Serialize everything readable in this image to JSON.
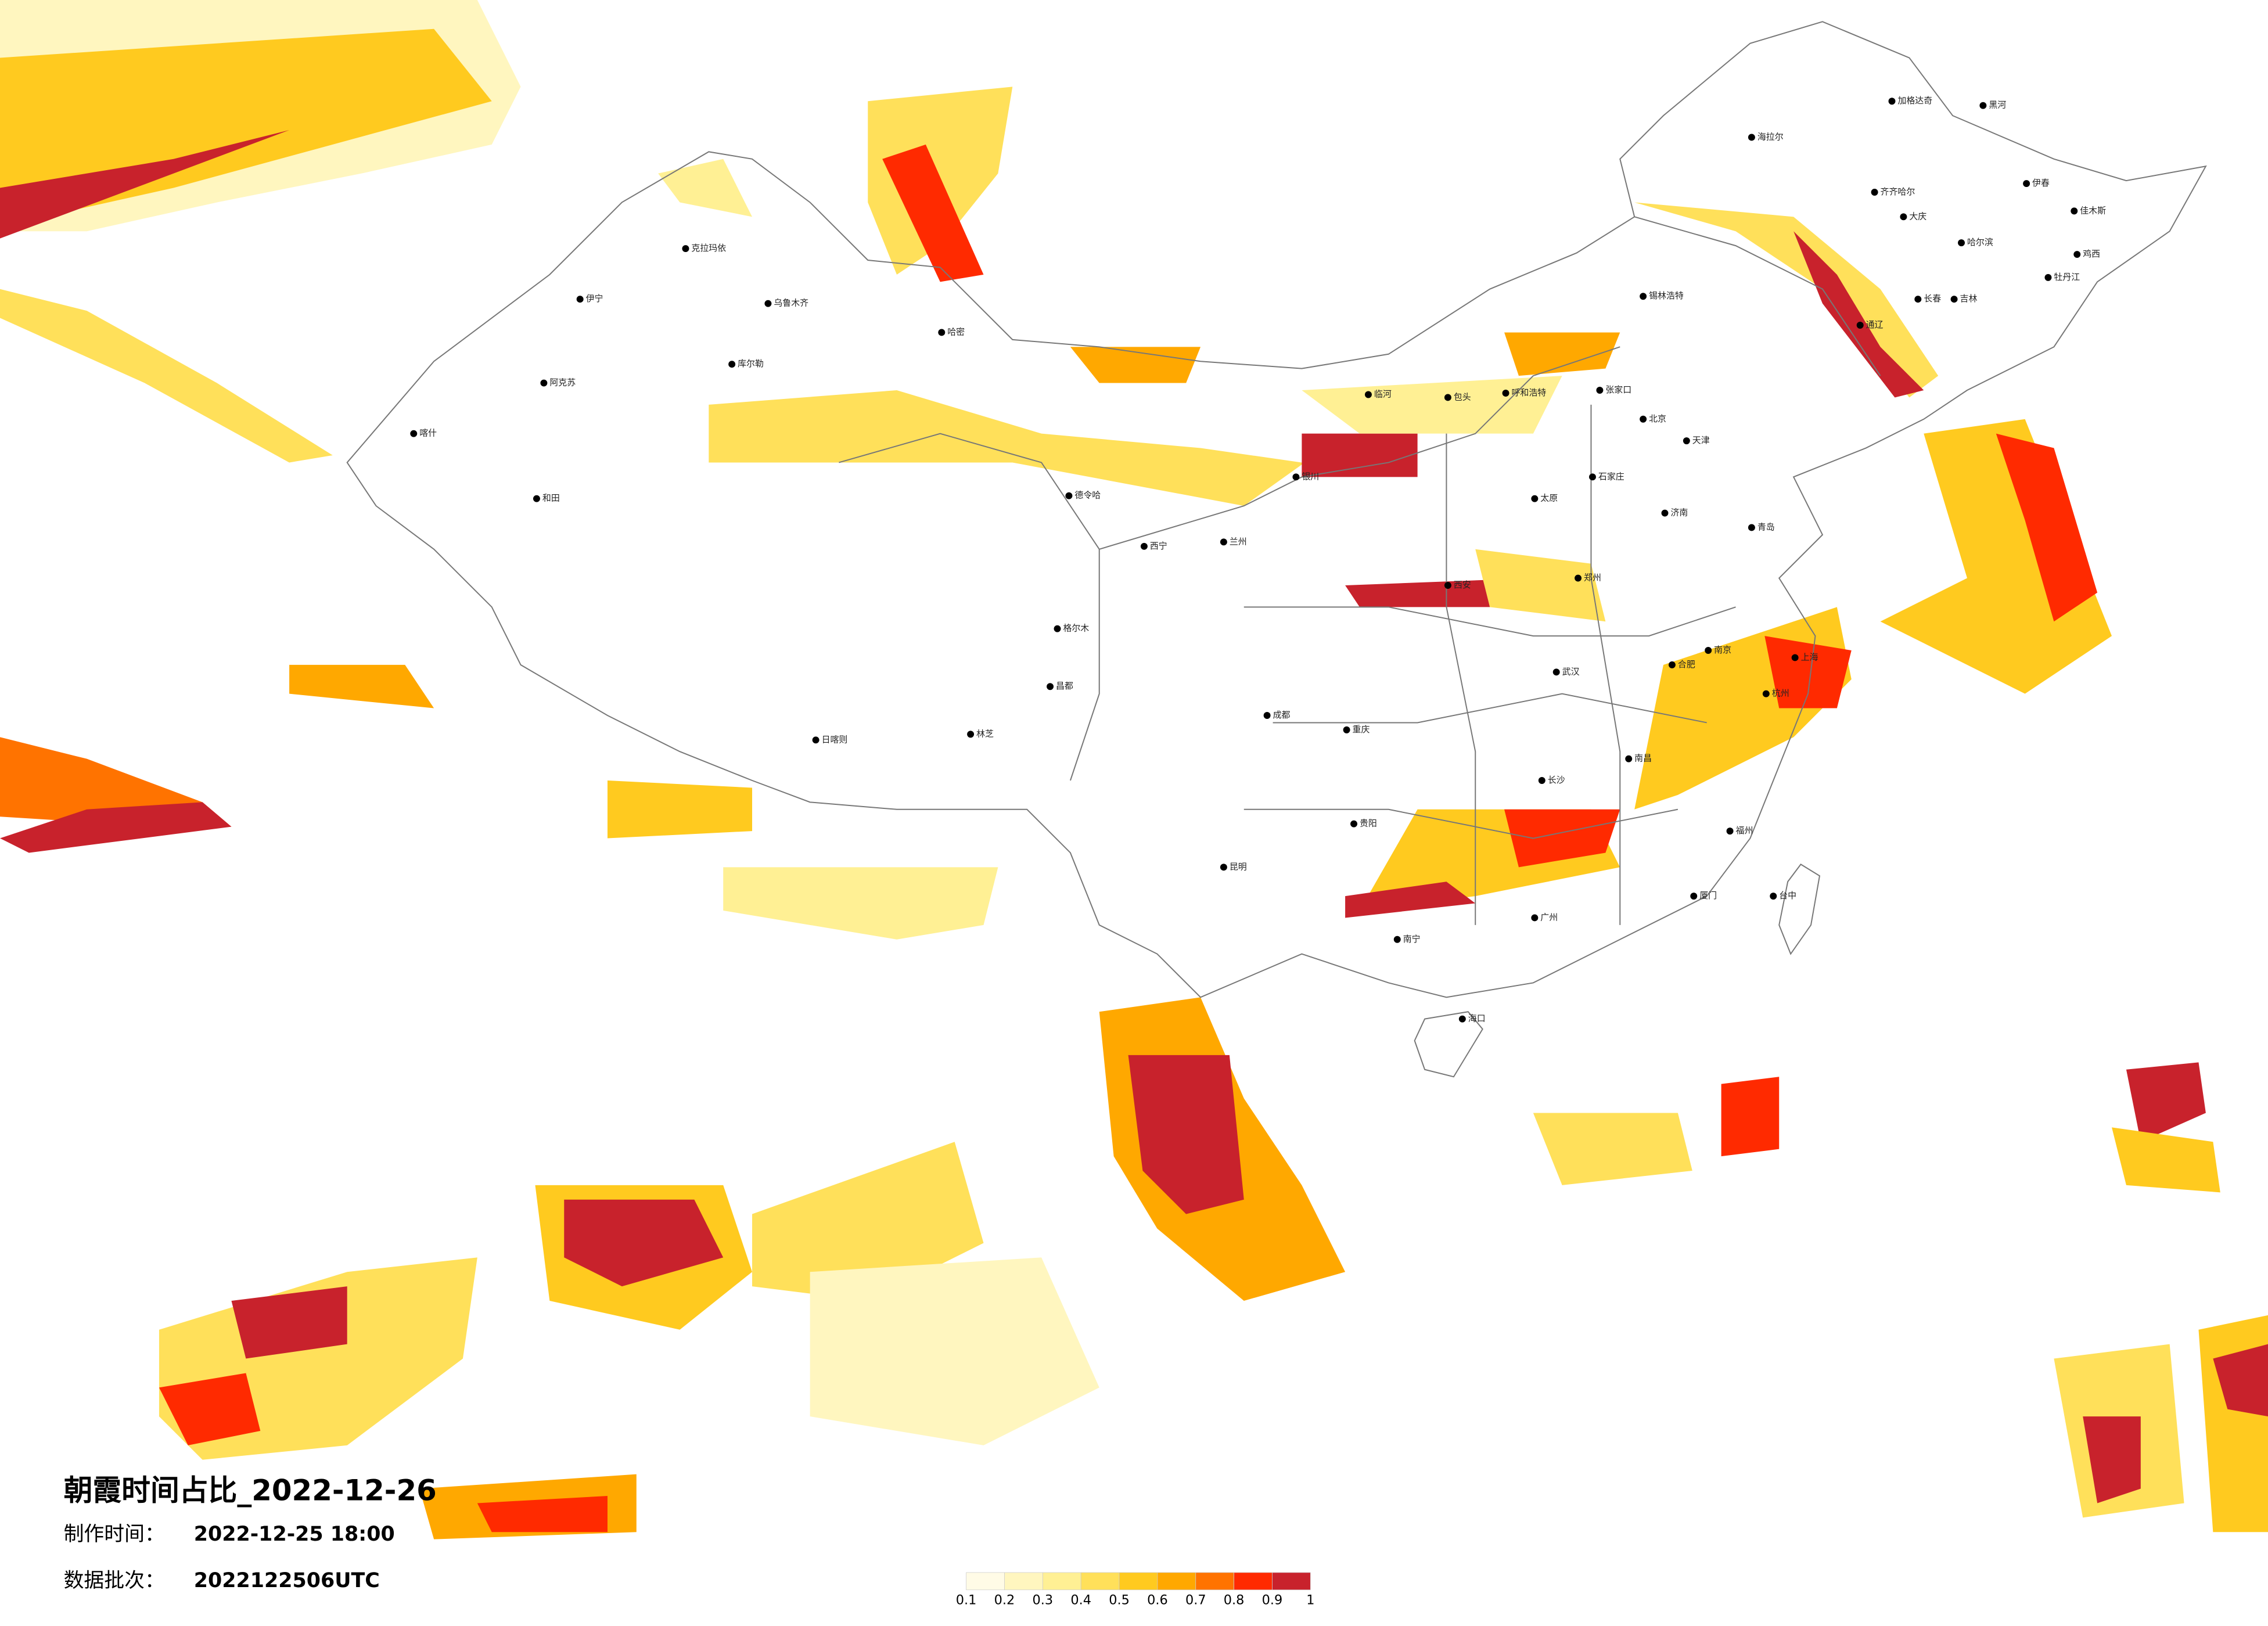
{
  "title": "朝霞时间占比_2022-12-26",
  "made_time": {
    "label": "制作时间：",
    "value": "2022-12-25 18:00"
  },
  "batch": {
    "label": "数据批次：",
    "value": "2022122506UTC"
  },
  "legend": {
    "ticks": [
      0.1,
      0.2,
      0.3,
      0.4,
      0.5,
      0.6,
      0.7,
      0.8,
      0.9,
      1
    ],
    "colors": [
      "#fffbe6",
      "#fff6bf",
      "#fff094",
      "#ffe05a",
      "#ffca1f",
      "#ffa800",
      "#ff7300",
      "#ff2a00",
      "#c8222c"
    ]
  },
  "cities": [
    "加格达奇",
    "黑河",
    "海拉尔",
    "齐齐哈尔",
    "大庆",
    "哈尔滨",
    "伊春",
    "佳木斯",
    "鸡西",
    "牡丹江",
    "吉林",
    "长春",
    "通辽",
    "锡林浩特",
    "呼和浩特",
    "包头",
    "临河",
    "张家口",
    "北京",
    "天津",
    "石家庄",
    "太原",
    "济南",
    "青岛",
    "郑州",
    "西安",
    "兰州",
    "西宁",
    "银川",
    "德令哈",
    "格尔木",
    "昌都",
    "日喀则",
    "林芝",
    "成都",
    "重庆",
    "贵阳",
    "昆明",
    "南宁",
    "广州",
    "海口",
    "武汉",
    "长沙",
    "南昌",
    "杭州",
    "上海",
    "南京",
    "合肥",
    "福州",
    "厦门",
    "台中",
    "乌鲁木齐",
    "克拉玛依",
    "喀什",
    "和田",
    "阿克苏",
    "伊宁",
    "库尔勒",
    "哈密"
  ]
}
